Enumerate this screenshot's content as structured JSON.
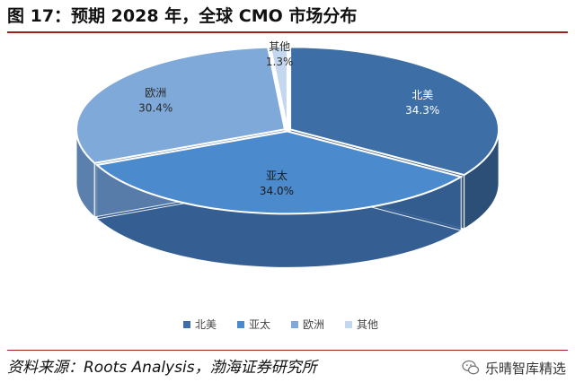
{
  "figure": {
    "title": "图 17：预期 2028 年，全球 CMO 市场分布",
    "source": "资料来源：Roots Analysis，渤海证券研究所",
    "watermark": "乐晴智库精选"
  },
  "chart_data": {
    "type": "pie",
    "title": "",
    "categories": [
      "北美",
      "亚太",
      "欧洲",
      "其他"
    ],
    "values": [
      34.3,
      34.0,
      30.4,
      1.3
    ],
    "labels": [
      "34.3%",
      "34.0%",
      "30.4%",
      "1.3%"
    ],
    "colors": [
      "#3d6fa6",
      "#4a8acd",
      "#7fa9d9",
      "#c3d7ee"
    ],
    "side_colors": [
      "#2c4f78",
      "#355f92",
      "#5b80ad",
      "#8fa7c2"
    ],
    "legend_position": "bottom",
    "style": "3d-pie"
  }
}
